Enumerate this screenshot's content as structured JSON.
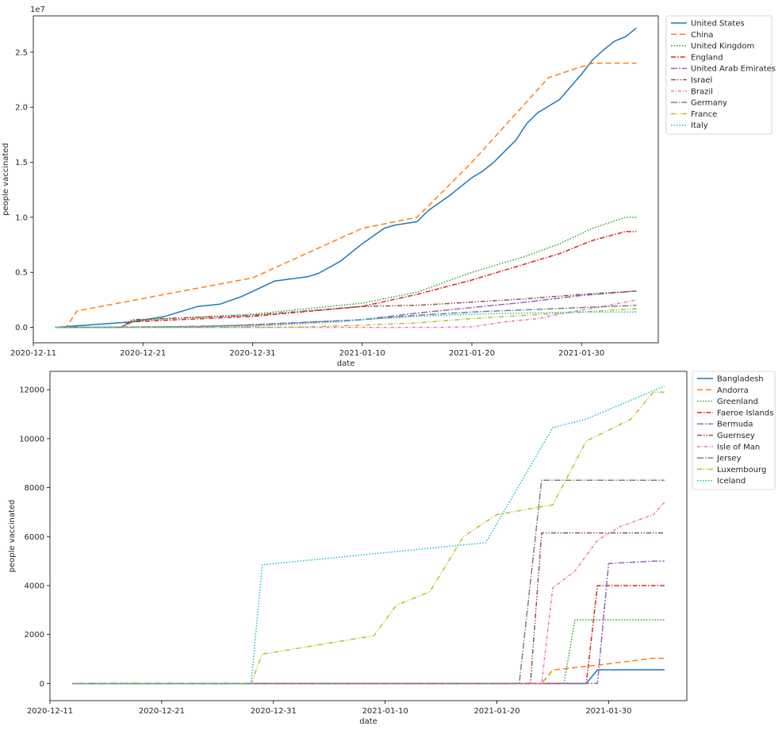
{
  "chart_data": [
    {
      "type": "line",
      "xlabel": "date",
      "ylabel": "people vaccinated",
      "y_offset_label": "1e7",
      "xlim": [
        "2020-12-11",
        "2021-02-06"
      ],
      "ylim": [
        -1400000,
        28300000
      ],
      "x_ticks": [
        "2020-12-11",
        "2020-12-21",
        "2020-12-31",
        "2021-01-10",
        "2021-01-20",
        "2021-01-30"
      ],
      "y_ticks": [
        0,
        5000000,
        10000000,
        15000000,
        20000000,
        25000000
      ],
      "y_tick_labels": [
        "0.0",
        "0.5",
        "1.0",
        "1.5",
        "2.0",
        "2.5"
      ],
      "legend": "outside-right",
      "series": [
        {
          "name": "United States",
          "color": "#1f77b4",
          "dash": "",
          "points": [
            [
              "2020-12-13",
              0
            ],
            [
              "2020-12-20",
              500000
            ],
            [
              "2020-12-23",
              1000000
            ],
            [
              "2020-12-26",
              1900000
            ],
            [
              "2020-12-28",
              2100000
            ],
            [
              "2020-12-30",
              2800000
            ],
            [
              "2021-01-02",
              4200000
            ],
            [
              "2021-01-05",
              4600000
            ],
            [
              "2021-01-06",
              4900000
            ],
            [
              "2021-01-08",
              6000000
            ],
            [
              "2021-01-10",
              7600000
            ],
            [
              "2021-01-12",
              9000000
            ],
            [
              "2021-01-13",
              9300000
            ],
            [
              "2021-01-15",
              9600000
            ],
            [
              "2021-01-16",
              10600000
            ],
            [
              "2021-01-18",
              12000000
            ],
            [
              "2021-01-20",
              13600000
            ],
            [
              "2021-01-21",
              14200000
            ],
            [
              "2021-01-22",
              15000000
            ],
            [
              "2021-01-24",
              17000000
            ],
            [
              "2021-01-25",
              18500000
            ],
            [
              "2021-01-26",
              19500000
            ],
            [
              "2021-01-28",
              20700000
            ],
            [
              "2021-01-30",
              23000000
            ],
            [
              "2021-01-31",
              24300000
            ],
            [
              "2021-02-01",
              25200000
            ],
            [
              "2021-02-02",
              26000000
            ],
            [
              "2021-02-03",
              26400000
            ],
            [
              "2021-02-04",
              27200000
            ]
          ]
        },
        {
          "name": "China",
          "color": "#ff7f0e",
          "dash": "7,4",
          "points": [
            [
              "2020-12-13",
              0
            ],
            [
              "2020-12-14",
              0
            ],
            [
              "2020-12-15",
              1500000
            ],
            [
              "2020-12-31",
              4500000
            ],
            [
              "2021-01-10",
              9000000
            ],
            [
              "2021-01-15",
              10000000
            ],
            [
              "2021-01-20",
              15000000
            ],
            [
              "2021-01-27",
              22700000
            ],
            [
              "2021-01-31",
              24000000
            ],
            [
              "2021-02-04",
              24000000
            ]
          ]
        },
        {
          "name": "United Kingdom",
          "color": "#2ca02c",
          "dash": "1.5,2",
          "points": [
            [
              "2020-12-13",
              0
            ],
            [
              "2020-12-19",
              0
            ],
            [
              "2020-12-20",
              600000
            ],
            [
              "2020-12-31",
              1200000
            ],
            [
              "2021-01-10",
              2200000
            ],
            [
              "2021-01-15",
              3200000
            ],
            [
              "2021-01-20",
              5000000
            ],
            [
              "2021-01-25",
              6500000
            ],
            [
              "2021-01-28",
              7600000
            ],
            [
              "2021-01-31",
              9000000
            ],
            [
              "2021-02-03",
              10000000
            ],
            [
              "2021-02-04",
              10000000
            ]
          ]
        },
        {
          "name": "England",
          "color": "#d62728",
          "dash": "6,2,1.5,2",
          "points": [
            [
              "2020-12-13",
              0
            ],
            [
              "2020-12-19",
              0
            ],
            [
              "2020-12-20",
              500000
            ],
            [
              "2020-12-31",
              1000000
            ],
            [
              "2021-01-10",
              1900000
            ],
            [
              "2021-01-15",
              3000000
            ],
            [
              "2021-01-20",
              4300000
            ],
            [
              "2021-01-25",
              5800000
            ],
            [
              "2021-01-28",
              6700000
            ],
            [
              "2021-01-31",
              7900000
            ],
            [
              "2021-02-03",
              8700000
            ],
            [
              "2021-02-04",
              8700000
            ]
          ]
        },
        {
          "name": "United Arab Emirates",
          "color": "#9467bd",
          "dash": "8,2,2,2",
          "points": [
            [
              "2020-12-13",
              0
            ],
            [
              "2020-12-23",
              50000
            ],
            [
              "2020-12-31",
              200000
            ],
            [
              "2021-01-10",
              700000
            ],
            [
              "2021-01-15",
              1300000
            ],
            [
              "2021-01-20",
              1800000
            ],
            [
              "2021-01-25",
              2300000
            ],
            [
              "2021-01-30",
              2900000
            ],
            [
              "2021-02-04",
              3300000
            ]
          ]
        },
        {
          "name": "Israel",
          "color": "#8c564b",
          "dash": "6,2,1.5,2,1.5,2",
          "points": [
            [
              "2020-12-13",
              0
            ],
            [
              "2020-12-19",
              0
            ],
            [
              "2020-12-20",
              700000
            ],
            [
              "2020-12-31",
              1100000
            ],
            [
              "2021-01-10",
              1900000
            ],
            [
              "2021-01-15",
              2000000
            ],
            [
              "2021-01-20",
              2300000
            ],
            [
              "2021-01-25",
              2600000
            ],
            [
              "2021-01-30",
              3000000
            ],
            [
              "2021-02-04",
              3300000
            ]
          ]
        },
        {
          "name": "Brazil",
          "color": "#e377c2",
          "dash": "4,2,1,2",
          "points": [
            [
              "2020-12-13",
              0
            ],
            [
              "2021-01-17",
              0
            ],
            [
              "2021-01-20",
              50000
            ],
            [
              "2021-01-23",
              500000
            ],
            [
              "2021-01-26",
              800000
            ],
            [
              "2021-01-29",
              1400000
            ],
            [
              "2021-02-01",
              1900000
            ],
            [
              "2021-02-04",
              2500000
            ]
          ]
        },
        {
          "name": "Germany",
          "color": "#7f7f7f",
          "dash": "8,2,1.5,2",
          "points": [
            [
              "2020-12-13",
              0
            ],
            [
              "2020-12-26",
              50000
            ],
            [
              "2020-12-31",
              250000
            ],
            [
              "2021-01-10",
              700000
            ],
            [
              "2021-01-15",
              1100000
            ],
            [
              "2021-01-20",
              1400000
            ],
            [
              "2021-01-25",
              1600000
            ],
            [
              "2021-01-30",
              1800000
            ],
            [
              "2021-02-04",
              2000000
            ]
          ]
        },
        {
          "name": "France",
          "color": "#bcbd22",
          "dash": "6,2,1,2,1,2",
          "points": [
            [
              "2020-12-13",
              0
            ],
            [
              "2021-01-01",
              0
            ],
            [
              "2021-01-05",
              50000
            ],
            [
              "2021-01-10",
              200000
            ],
            [
              "2021-01-15",
              400000
            ],
            [
              "2021-01-20",
              800000
            ],
            [
              "2021-01-25",
              1100000
            ],
            [
              "2021-01-30",
              1400000
            ],
            [
              "2021-02-04",
              1700000
            ]
          ]
        },
        {
          "name": "Italy",
          "color": "#17becf",
          "dash": "1.5,2",
          "points": [
            [
              "2020-12-13",
              0
            ],
            [
              "2020-12-26",
              50000
            ],
            [
              "2020-12-31",
              100000
            ],
            [
              "2021-01-08",
              500000
            ],
            [
              "2021-01-10",
              700000
            ],
            [
              "2021-01-15",
              1000000
            ],
            [
              "2021-01-20",
              1200000
            ],
            [
              "2021-01-25",
              1300000
            ],
            [
              "2021-01-30",
              1400000
            ],
            [
              "2021-02-04",
              1400000
            ]
          ]
        }
      ]
    },
    {
      "type": "line",
      "xlabel": "date",
      "ylabel": "people vaccinated",
      "xlim": [
        "2020-12-11",
        "2021-02-06"
      ],
      "ylim": [
        -700,
        12750
      ],
      "x_ticks": [
        "2020-12-11",
        "2020-12-21",
        "2020-12-31",
        "2021-01-10",
        "2021-01-20",
        "2021-01-30"
      ],
      "y_ticks": [
        0,
        2000,
        4000,
        6000,
        8000,
        10000,
        12000
      ],
      "y_tick_labels": [
        "0",
        "2000",
        "4000",
        "6000",
        "8000",
        "10000",
        "12000"
      ],
      "legend": "outside-right",
      "series": [
        {
          "name": "Bangladesh",
          "color": "#1f77b4",
          "dash": "",
          "points": [
            [
              "2020-12-13",
              0
            ],
            [
              "2021-01-27",
              0
            ],
            [
              "2021-01-28",
              0
            ],
            [
              "2021-01-29",
              560
            ],
            [
              "2021-02-04",
              560
            ]
          ]
        },
        {
          "name": "Andorra",
          "color": "#ff7f0e",
          "dash": "7,4",
          "points": [
            [
              "2020-12-13",
              0
            ],
            [
              "2021-01-24",
              0
            ],
            [
              "2021-01-25",
              550
            ],
            [
              "2021-01-29",
              750
            ],
            [
              "2021-02-03",
              1030
            ],
            [
              "2021-02-04",
              1030
            ]
          ]
        },
        {
          "name": "Greenland",
          "color": "#2ca02c",
          "dash": "1.5,2",
          "points": [
            [
              "2020-12-13",
              0
            ],
            [
              "2021-01-26",
              0
            ],
            [
              "2021-01-27",
              2600
            ],
            [
              "2021-02-04",
              2600
            ]
          ]
        },
        {
          "name": "Faeroe Islands",
          "color": "#d62728",
          "dash": "6,2,1.5,2",
          "points": [
            [
              "2020-12-13",
              0
            ],
            [
              "2021-01-28",
              0
            ],
            [
              "2021-01-29",
              4000
            ],
            [
              "2021-02-04",
              4000
            ]
          ]
        },
        {
          "name": "Bermuda",
          "color": "#9467bd",
          "dash": "8,2,2,2",
          "points": [
            [
              "2020-12-13",
              0
            ],
            [
              "2021-01-29",
              0
            ],
            [
              "2021-01-30",
              4900
            ],
            [
              "2021-02-03",
              5000
            ],
            [
              "2021-02-04",
              5000
            ]
          ]
        },
        {
          "name": "Guernsey",
          "color": "#8c564b",
          "dash": "6,2,1.5,2,1.5,2",
          "points": [
            [
              "2020-12-13",
              0
            ],
            [
              "2021-01-23",
              0
            ],
            [
              "2021-01-24",
              6150
            ],
            [
              "2021-02-04",
              6150
            ]
          ]
        },
        {
          "name": "Isle of Man",
          "color": "#e377c2",
          "dash": "4,2,1,2",
          "points": [
            [
              "2020-12-13",
              0
            ],
            [
              "2021-01-24",
              0
            ],
            [
              "2021-01-25",
              3900
            ],
            [
              "2021-01-27",
              4600
            ],
            [
              "2021-01-29",
              5850
            ],
            [
              "2021-01-31",
              6400
            ],
            [
              "2021-02-03",
              6900
            ],
            [
              "2021-02-04",
              7400
            ]
          ]
        },
        {
          "name": "Jersey",
          "color": "#7f7f7f",
          "dash": "8,2,1.5,2",
          "points": [
            [
              "2020-12-13",
              0
            ],
            [
              "2021-01-22",
              0
            ],
            [
              "2021-01-24",
              8300
            ],
            [
              "2021-02-04",
              8300
            ]
          ]
        },
        {
          "name": "Luxembourg",
          "color": "#bcbd22",
          "dash": "6,2,1,2,1,2",
          "points": [
            [
              "2020-12-13",
              0
            ],
            [
              "2020-12-29",
              0
            ],
            [
              "2020-12-30",
              1200
            ],
            [
              "2021-01-09",
              1950
            ],
            [
              "2021-01-11",
              3200
            ],
            [
              "2021-01-14",
              3750
            ],
            [
              "2021-01-17",
              6000
            ],
            [
              "2021-01-20",
              6900
            ],
            [
              "2021-01-25",
              7300
            ],
            [
              "2021-01-28",
              9900
            ],
            [
              "2021-02-01",
              10800
            ],
            [
              "2021-02-03",
              11900
            ],
            [
              "2021-02-04",
              11900
            ]
          ]
        },
        {
          "name": "Iceland",
          "color": "#17becf",
          "dash": "1.5,2",
          "points": [
            [
              "2020-12-13",
              0
            ],
            [
              "2020-12-29",
              0
            ],
            [
              "2020-12-30",
              4850
            ],
            [
              "2021-01-19",
              5750
            ],
            [
              "2021-01-25",
              10450
            ],
            [
              "2021-01-28",
              10800
            ],
            [
              "2021-02-04",
              12150
            ]
          ]
        }
      ]
    }
  ]
}
